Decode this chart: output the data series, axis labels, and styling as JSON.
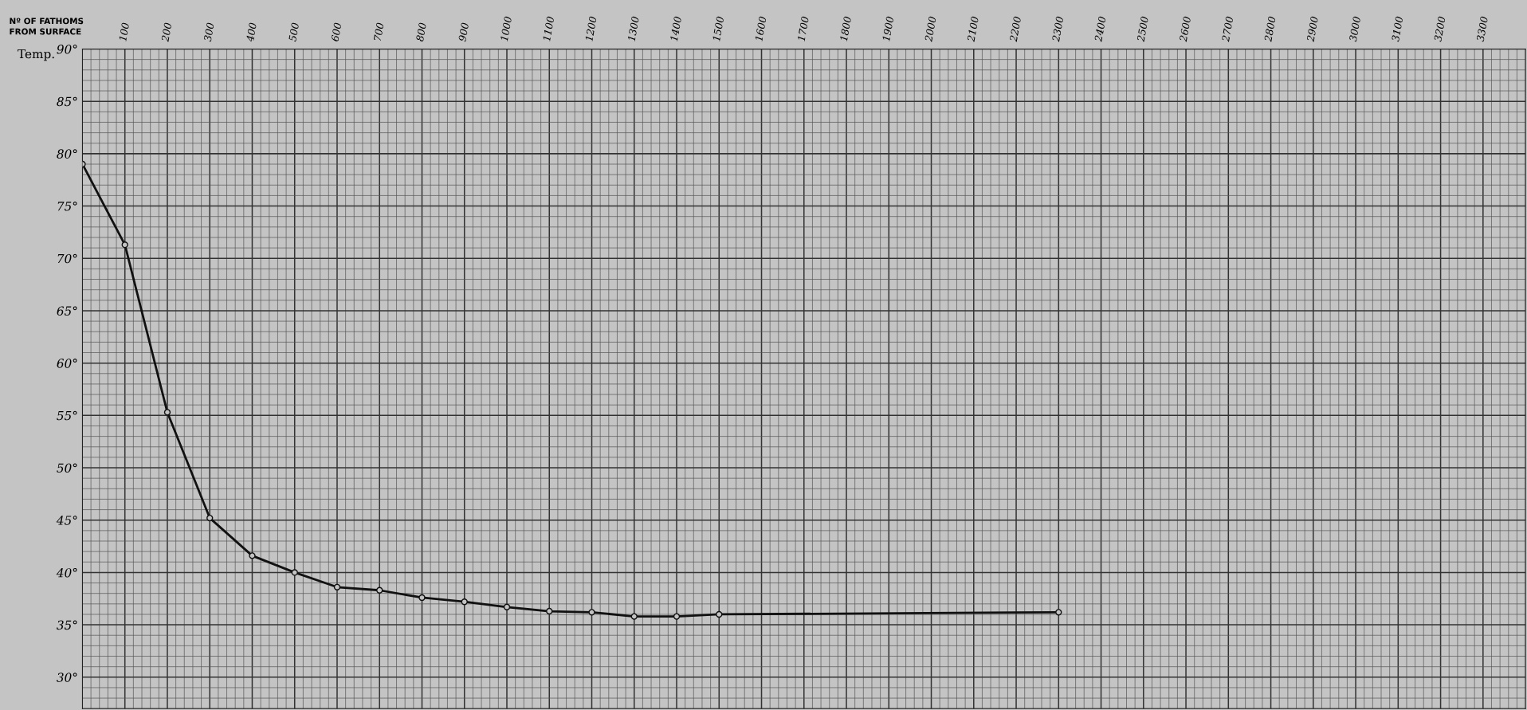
{
  "chart_data": {
    "type": "line",
    "xlabel": "Nº OF FATHOMS\nFROM SURFACE",
    "ylabel": "Temp.",
    "x": [
      0,
      100,
      200,
      300,
      400,
      500,
      600,
      700,
      800,
      900,
      1000,
      1100,
      1200,
      1300,
      1400,
      1500,
      2300
    ],
    "series": [
      {
        "color": "#111111",
        "values": [
          79,
          71.3,
          55.3,
          45.2,
          41.6,
          40.0,
          38.6,
          38.3,
          37.6,
          37.2,
          36.7,
          36.3,
          36.2,
          35.8,
          35.8,
          36.0,
          36.2
        ]
      }
    ],
    "xlim": [
      0,
      3400
    ],
    "xticks": [
      100,
      200,
      300,
      400,
      500,
      600,
      700,
      800,
      900,
      1000,
      1100,
      1200,
      1300,
      1400,
      1500,
      1600,
      1700,
      1800,
      1900,
      2000,
      2100,
      2200,
      2300,
      2400,
      2500,
      2600,
      2700,
      2800,
      2900,
      3000,
      3100,
      3200,
      3300
    ],
    "ylim": [
      27,
      90
    ],
    "yticks": [
      {
        "value": 30,
        "label": "30°"
      },
      {
        "value": 35,
        "label": "35°"
      },
      {
        "value": 40,
        "label": "40°"
      },
      {
        "value": 45,
        "label": "45°"
      },
      {
        "value": 50,
        "label": "50°"
      },
      {
        "value": 55,
        "label": "55°"
      },
      {
        "value": 60,
        "label": "60°"
      },
      {
        "value": 65,
        "label": "65°"
      },
      {
        "value": 70,
        "label": "70°"
      },
      {
        "value": 75,
        "label": "75°"
      },
      {
        "value": 80,
        "label": "80°"
      },
      {
        "value": 85,
        "label": "85°"
      },
      {
        "value": 90,
        "label": "90°"
      }
    ],
    "grid": true,
    "marker": "circle",
    "line_style": "solid",
    "legend": false
  }
}
